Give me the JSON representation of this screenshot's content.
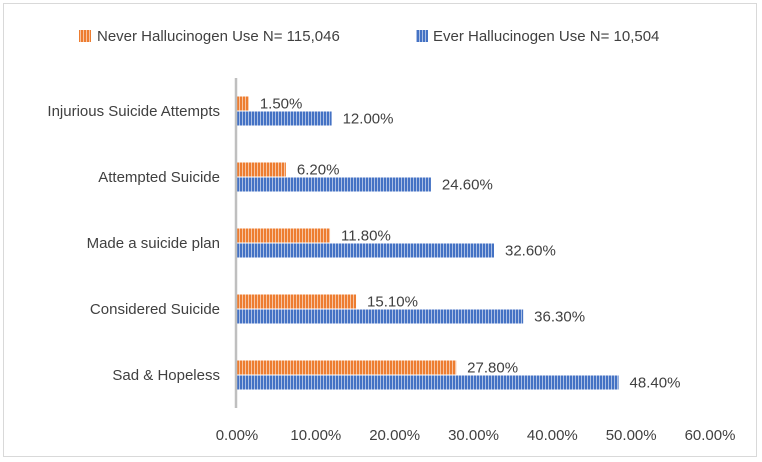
{
  "chart_data": {
    "type": "bar",
    "orientation": "horizontal",
    "categories": [
      "Sad & Hopeless",
      "Considered Suicide",
      "Made a suicide plan",
      "Attempted Suicide",
      "Injurious Suicide Attempts"
    ],
    "series": [
      {
        "name": "Never Hallucinogen Use N= 115,046",
        "values": [
          27.8,
          15.1,
          11.8,
          6.2,
          1.5
        ],
        "labels": [
          "27.80%",
          "15.10%",
          "11.80%",
          "6.20%",
          "1.50%"
        ],
        "color": "#ED7D31",
        "pattern": "vertical-stripes"
      },
      {
        "name": "Ever Hallucinogen Use N= 10,504",
        "values": [
          48.4,
          36.3,
          32.6,
          24.6,
          12.0
        ],
        "labels": [
          "48.40%",
          "36.30%",
          "32.60%",
          "24.60%",
          "12.00%"
        ],
        "color": "#4472C4",
        "pattern": "vertical-stripes"
      }
    ],
    "xlim": [
      0,
      60
    ],
    "xticks": [
      "0.00%",
      "10.00%",
      "20.00%",
      "30.00%",
      "40.00%",
      "50.00%",
      "60.00%"
    ],
    "legend_position": "top",
    "grid": false,
    "title": "",
    "xlabel": "",
    "ylabel": ""
  }
}
